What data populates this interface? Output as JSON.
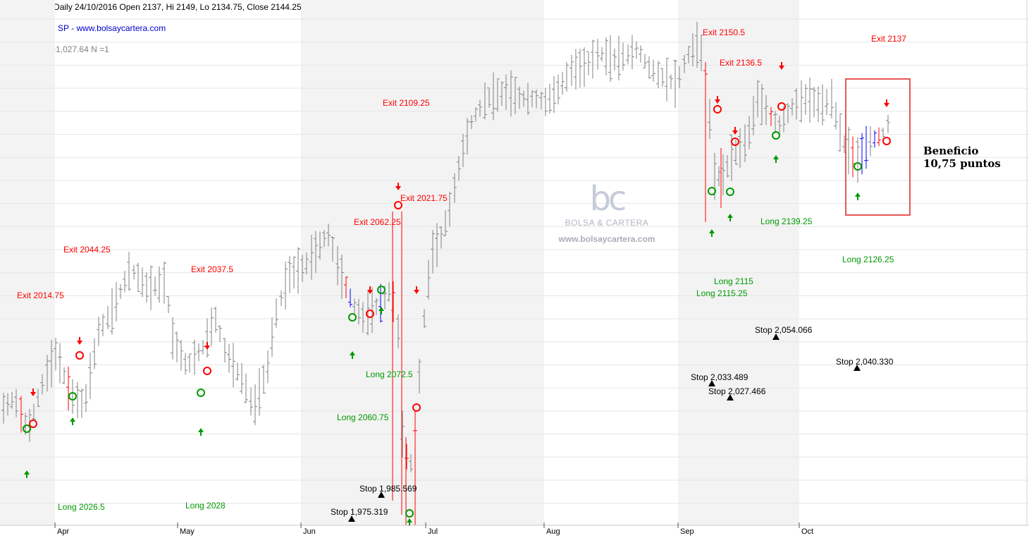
{
  "header": {
    "line1": "ES___CCB - Daily 24/10/2016  Open 2137,  Hi 2149,  Lo 2134.75,  Close 2144.25 (0.45%)",
    "line2": "SISTEMA IBS SP  -  www.bolsaycartera.com",
    "line3": "Volatilidad $ =1,027.64     N =1"
  },
  "annotation": {
    "line1": "Beneficio",
    "line2": "10,75 puntos"
  },
  "watermark": {
    "icon": "bc",
    "name": "BOLSA & CARTERA",
    "url": "www.bolsaycartera.com"
  },
  "colors": {
    "up_bar": "#808080",
    "entry_bar": "#ff0000",
    "long_bar": "#0000ff",
    "long": "#009900",
    "exit": "#ff0000",
    "stop": "#000000",
    "shade": "#f3f3f3"
  },
  "chart_data": {
    "type": "ohlc",
    "symbol": "ES___CCB",
    "x_ticks": [
      "Apr",
      "May",
      "Jun",
      "Jul",
      "Aug",
      "Sep",
      "Oct"
    ],
    "y_range": [
      1965,
      2170
    ],
    "grid": true,
    "exit_labels": [
      "Exit 2014.75",
      "Exit 2044.25",
      "Exit 2037.5",
      "Exit 2062.25",
      "Exit 2021.75",
      "Exit 2109.25",
      "Exit 2150.5",
      "Exit 2136.5",
      "Exit 2137"
    ],
    "long_labels": [
      "Long 2026.5",
      "Long 2028",
      "Long 2072.5",
      "Long 2060.75",
      "Long 2115",
      "Long 2115.25",
      "Long 2139.25",
      "Long 2126.25"
    ],
    "stop_labels": [
      "Stop 1,975.319",
      "Stop 1,985.569",
      "Stop 2,033.489",
      "Stop 2,027.466",
      "Stop 2,054.066",
      "Stop 2,040.330"
    ],
    "trades": [
      {
        "entry": 2026.5,
        "exit": 2014.75
      },
      {
        "entry": 2028,
        "exit": 2037.5
      },
      {
        "entry": 2072.5,
        "exit": 2062.25
      },
      {
        "entry": 2060.75,
        "exit": 2021.75
      },
      {
        "entry": 2115.25,
        "exit": 2150.5
      },
      {
        "entry": 2115,
        "exit": 2136.5
      },
      {
        "entry": 2139.25,
        "exit": 2137
      },
      {
        "entry": 2126.25,
        "exit": 2137
      }
    ]
  }
}
